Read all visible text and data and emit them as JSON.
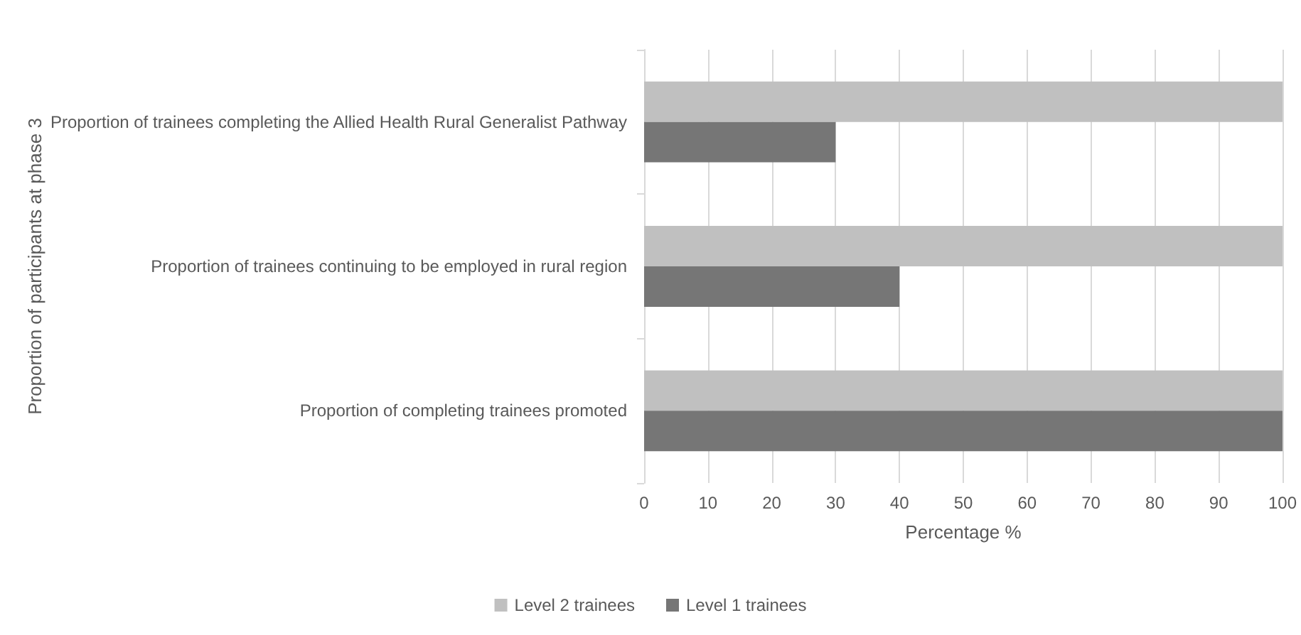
{
  "chart_data": {
    "type": "bar",
    "orientation": "horizontal",
    "xlabel": "Percentage %",
    "ylabel": "Proportion of participants at phase 3",
    "categories": [
      "Proportion of trainees completing the Allied Health Rural Generalist Pathway",
      "Proportion of trainees continuing to be employed in rural region",
      "Proportion of completing trainees promoted"
    ],
    "series": [
      {
        "name": "Level 2 trainees",
        "color": "#c0c0c0",
        "values": [
          100,
          100,
          100
        ]
      },
      {
        "name": "Level 1 trainees",
        "color": "#767676",
        "values": [
          30,
          40,
          100
        ]
      }
    ],
    "xlim": [
      0,
      100
    ],
    "xticks": [
      0,
      10,
      20,
      30,
      40,
      50,
      60,
      70,
      80,
      90,
      100
    ],
    "grid": "x",
    "legend": "bottom"
  }
}
